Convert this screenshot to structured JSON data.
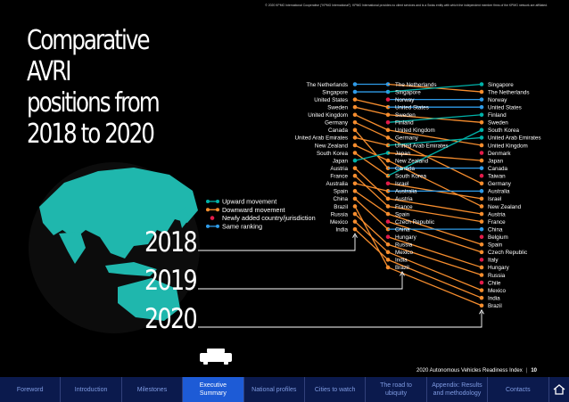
{
  "header": {
    "copyright": "© 2020 KPMG International Cooperative (\"KPMG International\"). KPMG International provides no client services and is a Swiss entity with which the independent member firms of the KPMG network are affiliated."
  },
  "title_lines": [
    "Comparative AVRI",
    "positions from",
    "2018 to 2020"
  ],
  "colors": {
    "upward": "#00b2a9",
    "downward": "#f68d2e",
    "new": "#e31b4a",
    "same": "#2f9be8",
    "globe": "#1fb7ad",
    "nav_bg": "#0b1a4d",
    "nav_active": "#1d5bd6"
  },
  "chart_data": {
    "type": "slope",
    "years": [
      "2018",
      "2019",
      "2020"
    ],
    "legend": [
      {
        "key": "upward",
        "label": "Upward movement"
      },
      {
        "key": "downward",
        "label": "Downward movement"
      },
      {
        "key": "new",
        "label": "Newly added country/jurisdiction"
      },
      {
        "key": "same",
        "label": "Same ranking"
      }
    ],
    "rankings": {
      "2018": [
        "The Netherlands",
        "Singapore",
        "United States",
        "Sweden",
        "United Kingdom",
        "Germany",
        "Canada",
        "United Arab Emirates",
        "New Zealand",
        "South Korea",
        "Japan",
        "Austria",
        "France",
        "Australia",
        "Spain",
        "China",
        "Brazil",
        "Russia",
        "Mexico",
        "India"
      ],
      "2019": [
        "The Netherlands",
        "Singapore",
        "Norway",
        "United States",
        "Sweden",
        "Finland",
        "United Kingdom",
        "Germany",
        "United Arab Emirates",
        "Japan",
        "New Zealand",
        "Canada",
        "South Korea",
        "Israel",
        "Australia",
        "Austria",
        "France",
        "Spain",
        "Czech Republic",
        "China",
        "Hungary",
        "Russia",
        "Mexico",
        "India",
        "Brazil"
      ],
      "2020": [
        "Singapore",
        "The Netherlands",
        "Norway",
        "United States",
        "Finland",
        "Sweden",
        "South Korea",
        "United Arab Emirates",
        "United Kingdom",
        "Denmark",
        "Japan",
        "Canada",
        "Taiwan",
        "Germany",
        "Australia",
        "Israel",
        "New Zealand",
        "Austria",
        "France",
        "China",
        "Belgium",
        "Spain",
        "Czech Republic",
        "Italy",
        "Hungary",
        "Russia",
        "Chile",
        "Mexico",
        "India",
        "Brazil"
      ]
    },
    "movements": {
      "2018-2019": [
        {
          "country": "The Netherlands",
          "type": "same"
        },
        {
          "country": "Singapore",
          "type": "same"
        },
        {
          "country": "United States",
          "type": "downward"
        },
        {
          "country": "Sweden",
          "type": "downward"
        },
        {
          "country": "United Kingdom",
          "type": "downward"
        },
        {
          "country": "Germany",
          "type": "downward"
        },
        {
          "country": "Canada",
          "type": "downward"
        },
        {
          "country": "United Arab Emirates",
          "type": "downward"
        },
        {
          "country": "New Zealand",
          "type": "downward"
        },
        {
          "country": "South Korea",
          "type": "downward"
        },
        {
          "country": "Japan",
          "type": "upward"
        },
        {
          "country": "Austria",
          "type": "downward"
        },
        {
          "country": "France",
          "type": "downward"
        },
        {
          "country": "Australia",
          "type": "downward"
        },
        {
          "country": "Spain",
          "type": "downward"
        },
        {
          "country": "China",
          "type": "downward"
        },
        {
          "country": "Brazil",
          "type": "downward"
        },
        {
          "country": "Russia",
          "type": "downward"
        },
        {
          "country": "Mexico",
          "type": "downward"
        },
        {
          "country": "India",
          "type": "downward"
        }
      ],
      "2019-2020": [
        {
          "country": "The Netherlands",
          "type": "downward"
        },
        {
          "country": "Singapore",
          "type": "upward"
        },
        {
          "country": "Norway",
          "type": "same"
        },
        {
          "country": "United States",
          "type": "same"
        },
        {
          "country": "Sweden",
          "type": "downward"
        },
        {
          "country": "Finland",
          "type": "upward"
        },
        {
          "country": "United Kingdom",
          "type": "downward"
        },
        {
          "country": "Germany",
          "type": "downward"
        },
        {
          "country": "United Arab Emirates",
          "type": "upward"
        },
        {
          "country": "Japan",
          "type": "downward"
        },
        {
          "country": "New Zealand",
          "type": "downward"
        },
        {
          "country": "Canada",
          "type": "same"
        },
        {
          "country": "South Korea",
          "type": "upward"
        },
        {
          "country": "Israel",
          "type": "downward"
        },
        {
          "country": "Australia",
          "type": "same"
        },
        {
          "country": "Austria",
          "type": "downward"
        },
        {
          "country": "France",
          "type": "downward"
        },
        {
          "country": "Spain",
          "type": "downward"
        },
        {
          "country": "Czech Republic",
          "type": "downward"
        },
        {
          "country": "China",
          "type": "same"
        },
        {
          "country": "Hungary",
          "type": "downward"
        },
        {
          "country": "Russia",
          "type": "downward"
        },
        {
          "country": "Mexico",
          "type": "downward"
        },
        {
          "country": "India",
          "type": "downward"
        },
        {
          "country": "Brazil",
          "type": "downward"
        }
      ]
    }
  },
  "logo": {
    "alt_text": "KPMG"
  },
  "footer": {
    "report_title": "2020 Autonomous Vehicles Readiness Index",
    "page_number": "10"
  },
  "nav": {
    "items": [
      {
        "label": "Foreword",
        "active": false
      },
      {
        "label": "Introduction",
        "active": false
      },
      {
        "label": "Milestones",
        "active": false
      },
      {
        "label": "Executive Summary",
        "active": true
      },
      {
        "label": "National profiles",
        "active": false
      },
      {
        "label": "Cities to watch",
        "active": false
      },
      {
        "label": "The road to ubiquity",
        "active": false
      },
      {
        "label": "Appendix: Results and methodology",
        "active": false
      },
      {
        "label": "Contacts",
        "active": false
      }
    ],
    "home_icon": "home-icon"
  }
}
